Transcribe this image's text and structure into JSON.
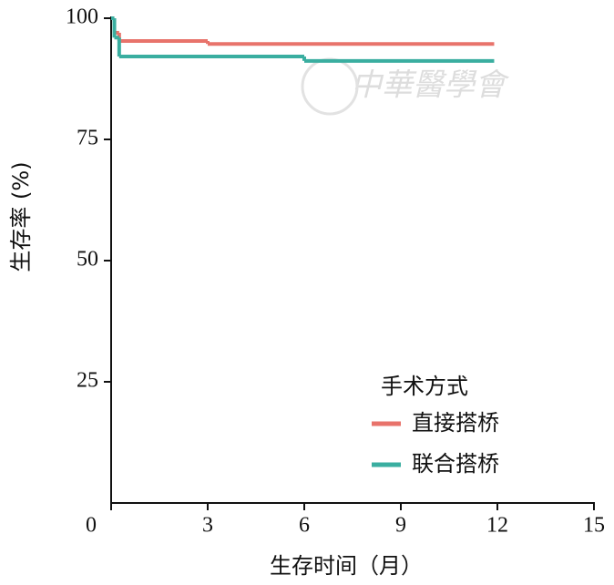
{
  "chart_data": {
    "type": "line",
    "step": "post",
    "watermark": "中華醫學會",
    "xlabel": "生存时间（月）",
    "ylabel": "生存率 (%)",
    "x": [
      0,
      0.1,
      0.25,
      3,
      6,
      11.9
    ],
    "series": [
      {
        "name": "直接搭桥",
        "color": "#e8736b",
        "values": [
          100,
          97,
          95.3,
          94.7,
          94.7,
          94.7
        ]
      },
      {
        "name": "联合搭桥",
        "color": "#3aaea0",
        "values": [
          100,
          96,
          92.1,
          92.1,
          91.2,
          91.2
        ]
      }
    ],
    "legend_title": "手术方式",
    "legend": "lower right",
    "xlim": [
      0,
      15
    ],
    "xticks": [
      0,
      3,
      6,
      9,
      12,
      15
    ],
    "ylim": [
      0,
      100
    ],
    "yticks": [
      25,
      50,
      75,
      100
    ]
  }
}
